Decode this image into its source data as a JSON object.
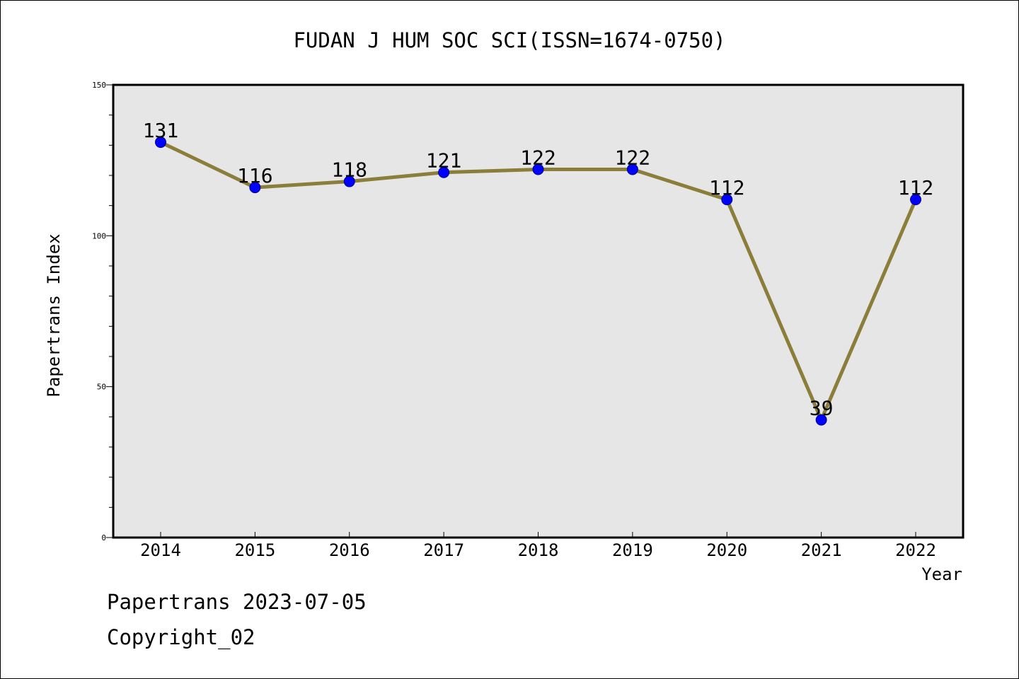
{
  "chart_data": {
    "type": "line",
    "title": "FUDAN J HUM SOC SCI(ISSN=1674-0750)",
    "xlabel": "Year",
    "ylabel": "Papertrans Index",
    "categories": [
      "2014",
      "2015",
      "2016",
      "2017",
      "2018",
      "2019",
      "2020",
      "2021",
      "2022"
    ],
    "values": [
      131,
      116,
      118,
      121,
      122,
      122,
      112,
      39,
      112
    ],
    "data_labels": [
      "131",
      "116",
      "118",
      "121",
      "122",
      "122",
      "112",
      "39",
      "112"
    ],
    "ylim": [
      0,
      150
    ],
    "yticks": [
      0,
      50,
      100,
      150
    ],
    "ytick_labels": [
      "0",
      "50",
      "100",
      "150"
    ],
    "grid": false,
    "colors": {
      "line": "#8b7d3a",
      "marker": "#0000ff",
      "plot_background": "#e6e6e6"
    }
  },
  "footer": {
    "source": "Papertrans 2023-07-05",
    "copyright": "Copyright_02"
  }
}
